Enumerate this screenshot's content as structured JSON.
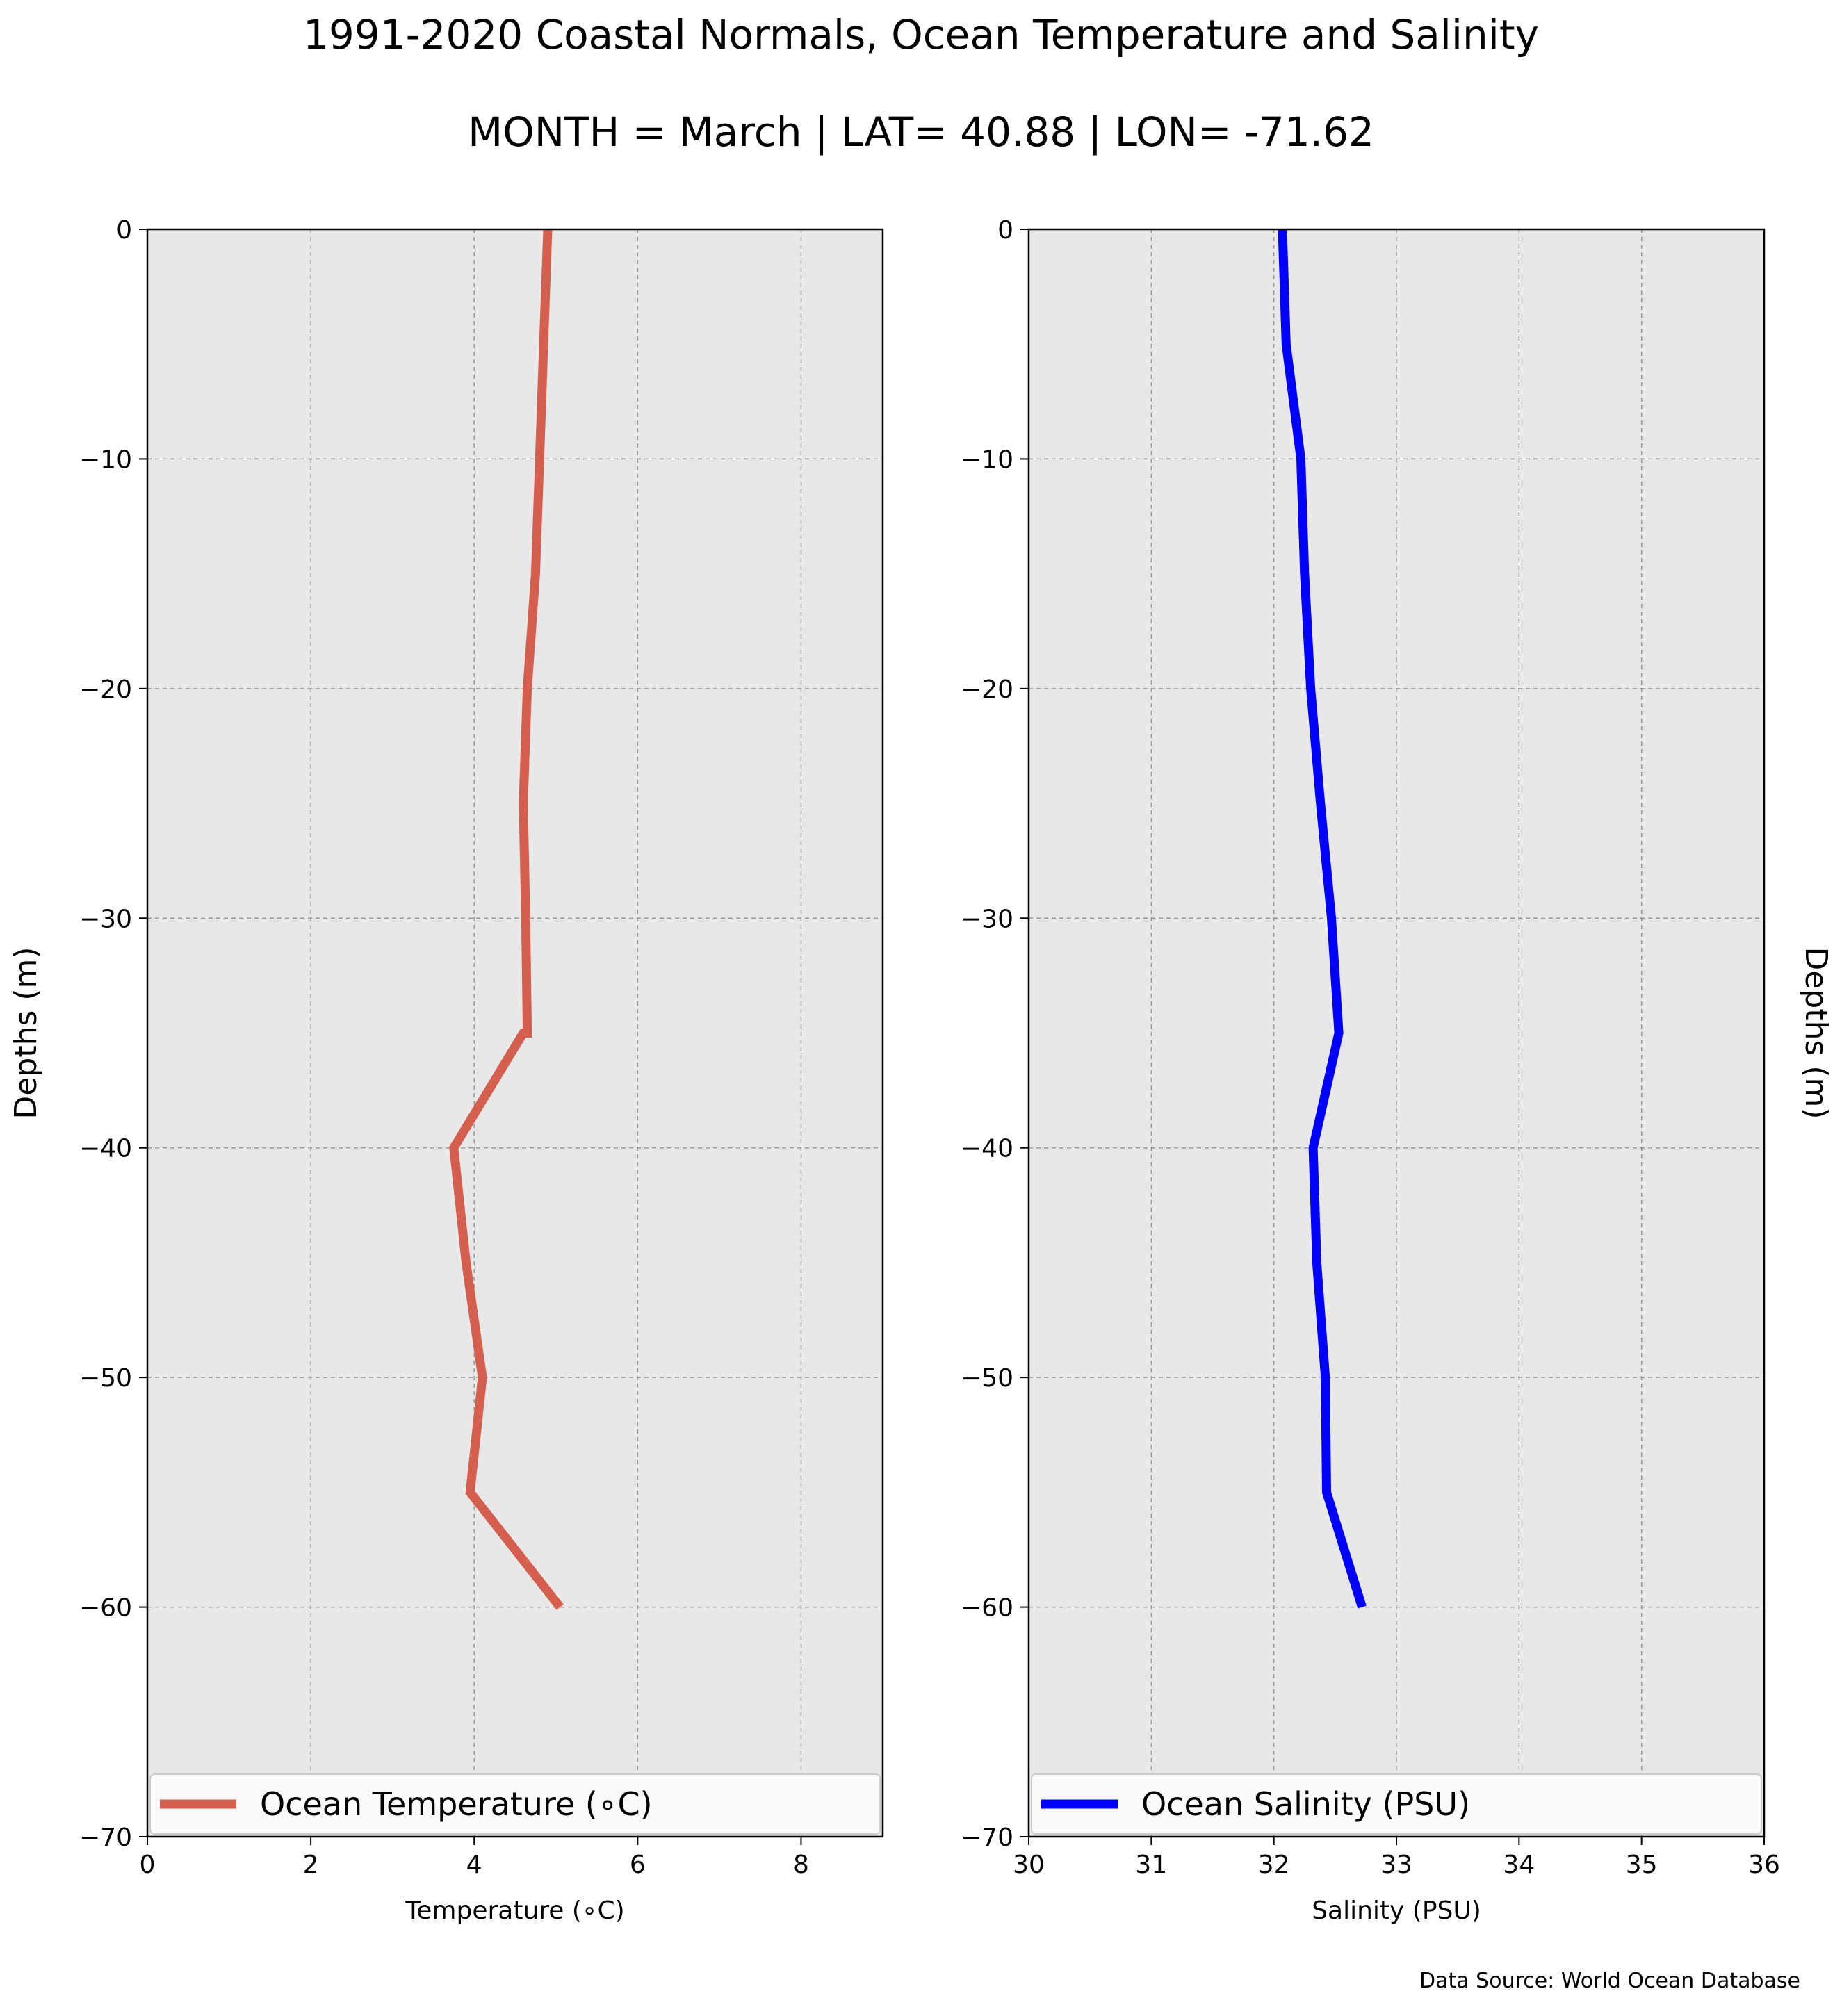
{
  "title": "1991-2020 Coastal Normals, Ocean Temperature and Salinity",
  "subtitle": "MONTH = March | LAT= 40.88 | LON= -71.62",
  "source_note": "Data Source: World Ocean Database",
  "colors": {
    "temperature": "#d55f4f",
    "salinity": "#0000ff",
    "plot_bg": "#e8e8e8",
    "grid": "#999999"
  },
  "chart_data": [
    {
      "type": "line",
      "xlabel": "Temperature ($^\\circ$C)",
      "xlabel_display": "Temperature (∘C)",
      "ylabel": "Depths (m)",
      "xlim": [
        0,
        9
      ],
      "ylim": [
        -70,
        0
      ],
      "xticks": [
        0,
        2,
        4,
        6,
        8
      ],
      "xtick_labels": [
        "0",
        "2",
        "4",
        "6",
        "8"
      ],
      "yticks": [
        0,
        -10,
        -20,
        -30,
        -40,
        -50,
        -60,
        -70
      ],
      "ytick_labels": [
        "0",
        "−10",
        "−20",
        "−30",
        "−40",
        "−50",
        "−60",
        "−70"
      ],
      "grid": true,
      "legend_position": "lower-center",
      "series": [
        {
          "name": "Ocean Temperature (∘C)",
          "color": "#d55f4f",
          "x": [
            4.9,
            4.85,
            4.8,
            4.75,
            4.65,
            4.6,
            4.63,
            4.65,
            4.6,
            3.75,
            3.9,
            4.1,
            3.95,
            5.05
          ],
          "y": [
            0,
            -5,
            -10,
            -15,
            -20,
            -25,
            -30,
            -35,
            -35,
            -40,
            -45,
            -50,
            -55,
            -60
          ]
        }
      ]
    },
    {
      "type": "line",
      "xlabel": "Salinity (PSU)",
      "ylabel": "Depths (m)",
      "xlim": [
        30,
        36
      ],
      "ylim": [
        -70,
        0
      ],
      "xticks": [
        30,
        31,
        32,
        33,
        34,
        35,
        36
      ],
      "xtick_labels": [
        "30",
        "31",
        "32",
        "33",
        "34",
        "35",
        "36"
      ],
      "yticks": [
        0,
        -10,
        -20,
        -30,
        -40,
        -50,
        -60,
        -70
      ],
      "ytick_labels": [
        "0",
        "−10",
        "−20",
        "−30",
        "−40",
        "−50",
        "−60",
        "−70"
      ],
      "grid": true,
      "legend_position": "lower-center",
      "series": [
        {
          "name": "Ocean Salinity (PSU)",
          "color": "#0000ff",
          "x": [
            32.07,
            32.1,
            32.22,
            32.25,
            32.3,
            32.38,
            32.47,
            32.53,
            32.32,
            32.35,
            32.42,
            32.43,
            32.72
          ],
          "y": [
            0,
            -5,
            -10,
            -15,
            -20,
            -25,
            -30,
            -35,
            -40,
            -45,
            -50,
            -55,
            -60
          ]
        }
      ]
    }
  ]
}
